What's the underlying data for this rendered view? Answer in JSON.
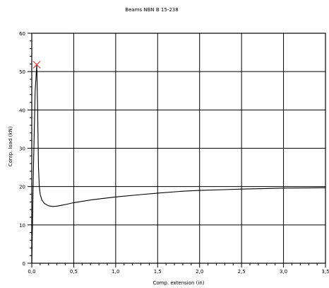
{
  "chart_data": {
    "type": "line",
    "title": "Beams NBN B 15-238",
    "xlabel": "Comp. extension (in)",
    "ylabel": "Comp. load (kN)",
    "xlim": [
      0,
      3.5
    ],
    "ylim": [
      0,
      60
    ],
    "grid": true,
    "x_ticks": [
      "0,0",
      "0,5",
      "1,0",
      "1,5",
      "2,0",
      "2,5",
      "3,0",
      "3,5"
    ],
    "y_ticks": [
      "0",
      "10",
      "20",
      "30",
      "40",
      "50",
      "60"
    ],
    "series": [
      {
        "color": "#000000",
        "points": [
          [
            0.0,
            0
          ],
          [
            0.02,
            25
          ],
          [
            0.04,
            45
          ],
          [
            0.06,
            51.8
          ],
          [
            0.07,
            40
          ],
          [
            0.08,
            25
          ],
          [
            0.09,
            20
          ],
          [
            0.1,
            18
          ],
          [
            0.12,
            16.5
          ],
          [
            0.15,
            15.6
          ],
          [
            0.2,
            15.0
          ],
          [
            0.25,
            14.8
          ],
          [
            0.3,
            14.9
          ],
          [
            0.4,
            15.3
          ],
          [
            0.5,
            15.8
          ],
          [
            0.7,
            16.5
          ],
          [
            1.0,
            17.3
          ],
          [
            1.3,
            17.9
          ],
          [
            1.5,
            18.3
          ],
          [
            1.8,
            18.8
          ],
          [
            2.0,
            19.0
          ],
          [
            2.3,
            19.2
          ],
          [
            2.5,
            19.35
          ],
          [
            2.8,
            19.5
          ],
          [
            3.0,
            19.6
          ],
          [
            3.3,
            19.65
          ],
          [
            3.5,
            19.7
          ]
        ]
      }
    ],
    "annotations": [
      {
        "type": "marker",
        "symbol": "x",
        "x": 0.06,
        "y": 51.8,
        "color": "#e34040"
      }
    ]
  }
}
